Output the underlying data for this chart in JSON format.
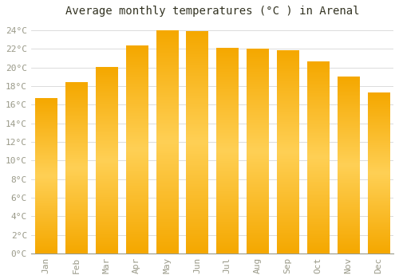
{
  "months": [
    "Jan",
    "Feb",
    "Mar",
    "Apr",
    "May",
    "Jun",
    "Jul",
    "Aug",
    "Sep",
    "Oct",
    "Nov",
    "Dec"
  ],
  "values": [
    16.7,
    18.4,
    20.0,
    22.3,
    24.0,
    23.9,
    22.1,
    22.0,
    21.8,
    20.6,
    19.0,
    17.3
  ],
  "bar_color_left": "#F5A800",
  "bar_color_center": "#FFD055",
  "bar_color_right": "#F0A000",
  "title": "Average monthly temperatures (°C ) in Arenal",
  "ylim": [
    0,
    25
  ],
  "ytick_max": 24,
  "ytick_step": 2,
  "background_color": "#FFFFFF",
  "grid_color": "#CCCCCC",
  "title_fontsize": 10,
  "tick_fontsize": 8,
  "tick_color": "#999988",
  "font_family": "monospace"
}
